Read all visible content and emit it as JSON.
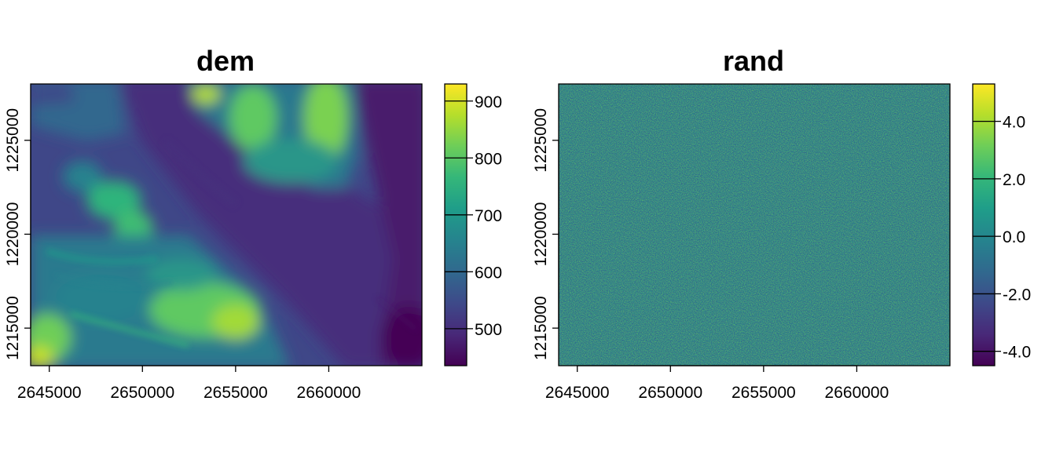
{
  "chart_data": [
    {
      "type": "heatmap",
      "title": "dem",
      "xlabel": "",
      "ylabel": "",
      "x_ticks": [
        "2645000",
        "2650000",
        "2655000",
        "2660000"
      ],
      "x_tick_values": [
        2645000,
        2650000,
        2655000,
        2660000
      ],
      "y_ticks": [
        "1215000",
        "1220000",
        "1225000"
      ],
      "y_tick_values": [
        1215000,
        1220000,
        1225000
      ],
      "xlim": [
        2644000,
        2665000
      ],
      "ylim": [
        1213000,
        1228000
      ],
      "colorbar": {
        "range": [
          435,
          930
        ],
        "ticks": [
          "500",
          "600",
          "700",
          "800",
          "900"
        ],
        "tick_values": [
          500,
          600,
          700,
          800,
          900
        ],
        "palette": "viridis"
      },
      "grid": false
    },
    {
      "type": "heatmap",
      "title": "rand",
      "xlabel": "",
      "ylabel": "",
      "x_ticks": [
        "2645000",
        "2650000",
        "2655000",
        "2660000"
      ],
      "x_tick_values": [
        2645000,
        2650000,
        2655000,
        2660000
      ],
      "y_ticks": [
        "1215000",
        "1220000",
        "1225000"
      ],
      "y_tick_values": [
        1215000,
        1220000,
        1225000
      ],
      "xlim": [
        2644000,
        2665000
      ],
      "ylim": [
        1213000,
        1228000
      ],
      "colorbar": {
        "range": [
          -4.5,
          5.3
        ],
        "ticks": [
          "-4.0",
          "-2.0",
          "0.0",
          "2.0",
          "4.0"
        ],
        "tick_values": [
          -4,
          -2,
          0,
          2,
          4
        ],
        "palette": "viridis"
      },
      "grid": false
    }
  ],
  "colors": {
    "viridis": [
      "#440154",
      "#482878",
      "#3e4989",
      "#31688e",
      "#26828e",
      "#1f9e89",
      "#35b779",
      "#6ece58",
      "#b5de2b",
      "#fde725"
    ]
  }
}
